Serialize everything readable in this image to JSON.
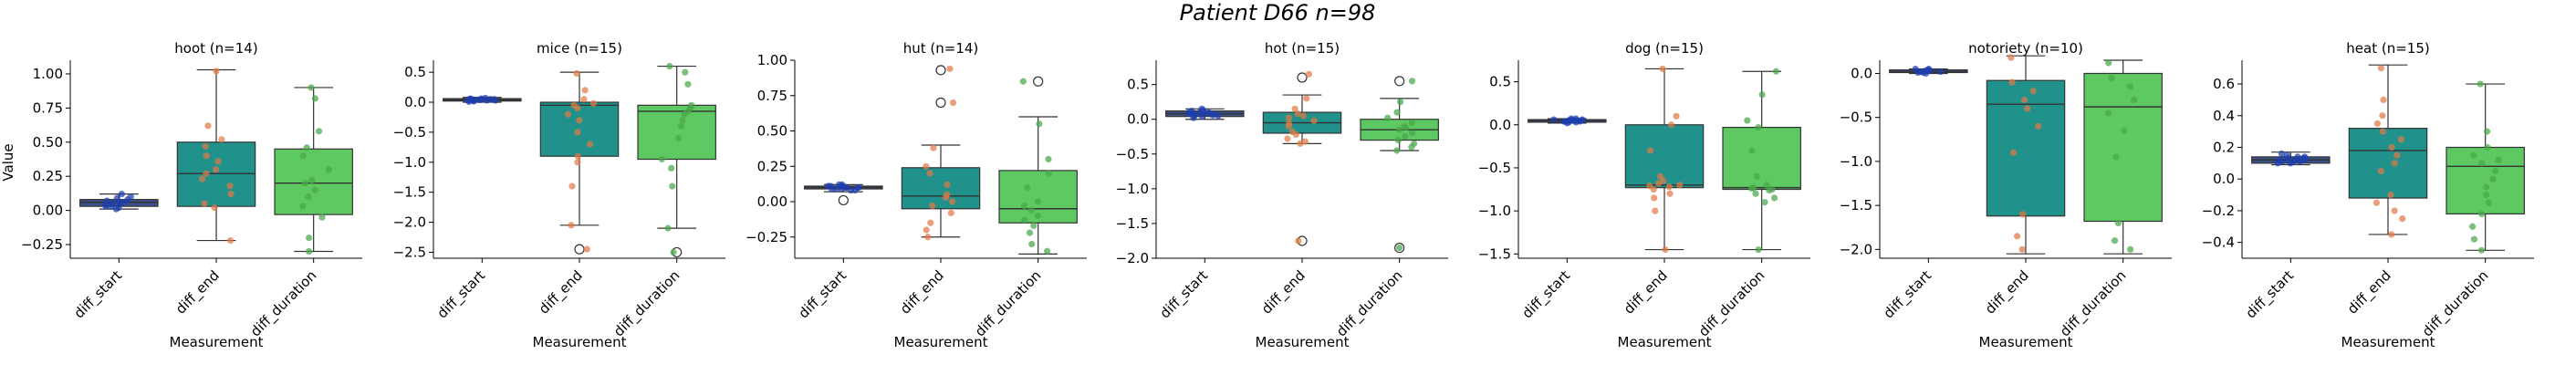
{
  "suptitle": "Patient D66 n=98",
  "ylabel": "Value",
  "xlabel": "Measurement",
  "categories": [
    "diff_start",
    "diff_end",
    "diff_duration"
  ],
  "colors": {
    "box": [
      "#3b528b",
      "#21918c",
      "#5ec962"
    ],
    "points": [
      "#1f3fae",
      "#e07a45",
      "#4aa64a"
    ]
  },
  "chart_data": [
    {
      "type": "box",
      "title": "hoot (n=14)",
      "ylim": [
        -0.35,
        1.1
      ],
      "yticks": [
        -0.25,
        0.0,
        0.25,
        0.5,
        0.75,
        1.0
      ],
      "ytick_labels": [
        "−0.25",
        "0.00",
        "0.25",
        "0.50",
        "0.75",
        "1.00"
      ],
      "boxes": [
        {
          "q1": 0.03,
          "median": 0.06,
          "q3": 0.08,
          "wlo": 0.01,
          "whi": 0.12,
          "outliers": []
        },
        {
          "q1": 0.03,
          "median": 0.27,
          "q3": 0.5,
          "wlo": -0.22,
          "whi": 1.03,
          "outliers": []
        },
        {
          "q1": -0.03,
          "median": 0.2,
          "q3": 0.45,
          "wlo": -0.3,
          "whi": 0.9,
          "outliers": []
        }
      ],
      "points": [
        [
          0.02,
          0.05,
          0.07,
          0.03,
          0.09,
          0.06,
          0.04,
          0.1,
          0.12,
          0.01,
          0.05,
          0.08,
          0.06,
          0.03
        ],
        [
          1.02,
          0.62,
          0.52,
          0.47,
          0.36,
          0.3,
          0.27,
          0.23,
          0.18,
          0.12,
          0.05,
          0.02,
          -0.22,
          0.4
        ],
        [
          0.9,
          0.82,
          0.58,
          0.46,
          0.4,
          0.3,
          0.22,
          0.2,
          0.15,
          0.1,
          0.03,
          -0.05,
          -0.2,
          -0.3
        ]
      ]
    },
    {
      "type": "box",
      "title": "mice (n=15)",
      "ylim": [
        -2.6,
        0.7
      ],
      "yticks": [
        -2.5,
        -2.0,
        -1.5,
        -1.0,
        -0.5,
        0.0,
        0.5
      ],
      "ytick_labels": [
        "−2.5",
        "−2.0",
        "−1.5",
        "−1.0",
        "−0.5",
        "0.0",
        "0.5"
      ],
      "boxes": [
        {
          "q1": 0.02,
          "median": 0.04,
          "q3": 0.06,
          "wlo": 0.0,
          "whi": 0.08,
          "outliers": []
        },
        {
          "q1": -0.9,
          "median": -0.05,
          "q3": 0.0,
          "wlo": -2.05,
          "whi": 0.5,
          "outliers": [
            -2.45
          ]
        },
        {
          "q1": -0.95,
          "median": -0.15,
          "q3": -0.05,
          "wlo": -2.1,
          "whi": 0.6,
          "outliers": [
            -2.5
          ]
        }
      ],
      "points": [
        [
          0.01,
          0.03,
          0.04,
          0.05,
          0.06,
          0.02,
          0.07,
          0.04,
          0.05,
          0.03,
          0.06,
          0.02,
          0.04,
          0.05,
          0.03
        ],
        [
          0.48,
          0.2,
          0.05,
          -0.02,
          -0.05,
          -0.1,
          -0.3,
          -0.5,
          -0.7,
          -0.9,
          -1.0,
          -1.4,
          -2.05,
          -2.45,
          -0.2
        ],
        [
          0.6,
          0.5,
          0.3,
          -0.05,
          -0.1,
          -0.15,
          -0.2,
          -0.4,
          -0.6,
          -0.95,
          -1.1,
          -1.4,
          -2.1,
          -2.5,
          -0.3
        ]
      ]
    },
    {
      "type": "box",
      "title": "hut (n=14)",
      "ylim": [
        -0.4,
        1.0
      ],
      "yticks": [
        -0.25,
        0.0,
        0.25,
        0.5,
        0.75,
        1.0
      ],
      "ytick_labels": [
        "−0.25",
        "0.00",
        "0.25",
        "0.50",
        "0.75",
        "1.00"
      ],
      "boxes": [
        {
          "q1": 0.09,
          "median": 0.1,
          "q3": 0.11,
          "wlo": 0.07,
          "whi": 0.12,
          "outliers": [
            0.01
          ]
        },
        {
          "q1": -0.05,
          "median": 0.04,
          "q3": 0.24,
          "wlo": -0.25,
          "whi": 0.4,
          "outliers": [
            0.7,
            0.93
          ]
        },
        {
          "q1": -0.15,
          "median": -0.05,
          "q3": 0.22,
          "wlo": -0.37,
          "whi": 0.6,
          "outliers": [
            0.85
          ]
        }
      ],
      "points": [
        [
          0.08,
          0.09,
          0.1,
          0.11,
          0.12,
          0.1,
          0.09,
          0.11,
          0.1,
          0.12,
          0.08,
          0.1,
          0.11,
          0.09
        ],
        [
          0.94,
          0.7,
          0.38,
          0.25,
          0.2,
          0.12,
          0.05,
          0.03,
          0.0,
          -0.03,
          -0.08,
          -0.15,
          -0.2,
          -0.25
        ],
        [
          0.85,
          0.55,
          0.3,
          0.2,
          0.1,
          0.0,
          -0.03,
          -0.06,
          -0.1,
          -0.13,
          -0.17,
          -0.22,
          -0.3,
          -0.35
        ]
      ]
    },
    {
      "type": "box",
      "title": "hot (n=15)",
      "ylim": [
        -2.0,
        0.85
      ],
      "yticks": [
        -2.0,
        -1.5,
        -1.0,
        -0.5,
        0.0,
        0.5
      ],
      "ytick_labels": [
        "−2.0",
        "−1.5",
        "−1.0",
        "−0.5",
        "0.0",
        "0.5"
      ],
      "boxes": [
        {
          "q1": 0.04,
          "median": 0.08,
          "q3": 0.12,
          "wlo": 0.0,
          "whi": 0.15,
          "outliers": []
        },
        {
          "q1": -0.2,
          "median": -0.05,
          "q3": 0.1,
          "wlo": -0.35,
          "whi": 0.35,
          "outliers": [
            0.6,
            -1.75
          ]
        },
        {
          "q1": -0.3,
          "median": -0.15,
          "q3": 0.0,
          "wlo": -0.45,
          "whi": 0.3,
          "outliers": [
            0.55,
            -1.85
          ]
        }
      ],
      "points": [
        [
          0.02,
          0.05,
          0.08,
          0.1,
          0.12,
          0.15,
          0.07,
          0.09,
          0.04,
          0.11,
          0.06,
          0.13,
          0.08,
          0.1,
          0.05
        ],
        [
          0.65,
          0.3,
          0.15,
          0.08,
          0.02,
          -0.02,
          -0.06,
          -0.1,
          -0.18,
          -0.22,
          -0.28,
          -0.32,
          -0.35,
          -1.75,
          0.05
        ],
        [
          0.55,
          0.25,
          0.1,
          0.02,
          -0.05,
          -0.1,
          -0.15,
          -0.2,
          -0.25,
          -0.3,
          -0.35,
          -0.4,
          -0.45,
          -1.85,
          -0.12
        ]
      ]
    },
    {
      "type": "box",
      "title": "dog (n=15)",
      "ylim": [
        -1.55,
        0.75
      ],
      "yticks": [
        -1.5,
        -1.0,
        -0.5,
        0.0,
        0.5
      ],
      "ytick_labels": [
        "−1.5",
        "−1.0",
        "−0.5",
        "0.0",
        "0.5"
      ],
      "boxes": [
        {
          "q1": 0.03,
          "median": 0.05,
          "q3": 0.06,
          "wlo": 0.02,
          "whi": 0.07,
          "outliers": []
        },
        {
          "q1": -0.73,
          "median": -0.7,
          "q3": 0.0,
          "wlo": -1.45,
          "whi": 0.65,
          "outliers": []
        },
        {
          "q1": -0.75,
          "median": -0.73,
          "q3": -0.03,
          "wlo": -1.45,
          "whi": 0.62,
          "outliers": []
        }
      ],
      "points": [
        [
          0.03,
          0.04,
          0.05,
          0.06,
          0.07,
          0.05,
          0.04,
          0.06,
          0.05,
          0.03,
          0.06,
          0.04,
          0.05,
          0.07,
          0.02
        ],
        [
          0.65,
          0.1,
          0.0,
          -0.3,
          -0.6,
          -0.65,
          -0.7,
          -0.72,
          -0.75,
          -0.8,
          -0.85,
          -1.0,
          -1.45,
          -0.68,
          -0.71
        ],
        [
          0.62,
          0.35,
          0.05,
          -0.03,
          -0.3,
          -0.7,
          -0.73,
          -0.76,
          -0.8,
          -0.85,
          -0.9,
          -1.45,
          -0.75,
          -0.74,
          -0.6
        ]
      ]
    },
    {
      "type": "box",
      "title": "notoriety (n=10)",
      "ylim": [
        -2.1,
        0.15
      ],
      "yticks": [
        -2.0,
        -1.5,
        -1.0,
        -0.5,
        0.0
      ],
      "ytick_labels": [
        "−2.0",
        "−1.5",
        "−1.0",
        "−0.5",
        "0.0"
      ],
      "boxes": [
        {
          "q1": 0.01,
          "median": 0.02,
          "q3": 0.04,
          "wlo": 0.0,
          "whi": 0.05,
          "outliers": []
        },
        {
          "q1": -1.62,
          "median": -0.35,
          "q3": -0.08,
          "wlo": -2.05,
          "whi": 0.2,
          "outliers": []
        },
        {
          "q1": -1.68,
          "median": -0.38,
          "q3": 0.0,
          "wlo": -2.05,
          "whi": 0.15,
          "outliers": []
        }
      ],
      "points": [
        [
          0.0,
          0.02,
          0.03,
          0.05,
          0.01,
          0.04,
          0.02,
          0.03,
          0.05,
          0.01
        ],
        [
          0.18,
          -0.1,
          -0.2,
          -0.3,
          -0.4,
          -0.6,
          -0.9,
          -1.6,
          -1.85,
          -2.0
        ],
        [
          0.12,
          -0.05,
          -0.15,
          -0.3,
          -0.45,
          -0.65,
          -0.95,
          -1.7,
          -1.9,
          -2.0
        ]
      ]
    },
    {
      "type": "box",
      "title": "heat (n=15)",
      "ylim": [
        -0.5,
        0.75
      ],
      "yticks": [
        -0.4,
        -0.2,
        0.0,
        0.2,
        0.4,
        0.6
      ],
      "ytick_labels": [
        "−0.4",
        "−0.2",
        "0.0",
        "0.2",
        "0.4",
        "0.6"
      ],
      "boxes": [
        {
          "q1": 0.1,
          "median": 0.12,
          "q3": 0.14,
          "wlo": 0.09,
          "whi": 0.17,
          "outliers": []
        },
        {
          "q1": -0.12,
          "median": 0.18,
          "q3": 0.32,
          "wlo": -0.35,
          "whi": 0.72,
          "outliers": []
        },
        {
          "q1": -0.22,
          "median": 0.08,
          "q3": 0.2,
          "wlo": -0.45,
          "whi": 0.6,
          "outliers": []
        }
      ],
      "points": [
        [
          0.1,
          0.11,
          0.12,
          0.13,
          0.14,
          0.15,
          0.12,
          0.11,
          0.13,
          0.1,
          0.16,
          0.12,
          0.14,
          0.11,
          0.13
        ],
        [
          0.7,
          0.5,
          0.4,
          0.35,
          0.25,
          0.2,
          0.15,
          0.1,
          0.05,
          -0.1,
          -0.15,
          -0.2,
          -0.25,
          -0.35,
          0.3
        ],
        [
          0.6,
          0.3,
          0.2,
          0.15,
          0.1,
          0.05,
          0.0,
          -0.05,
          -0.1,
          -0.15,
          -0.22,
          -0.3,
          -0.38,
          -0.45,
          0.12
        ]
      ]
    }
  ]
}
